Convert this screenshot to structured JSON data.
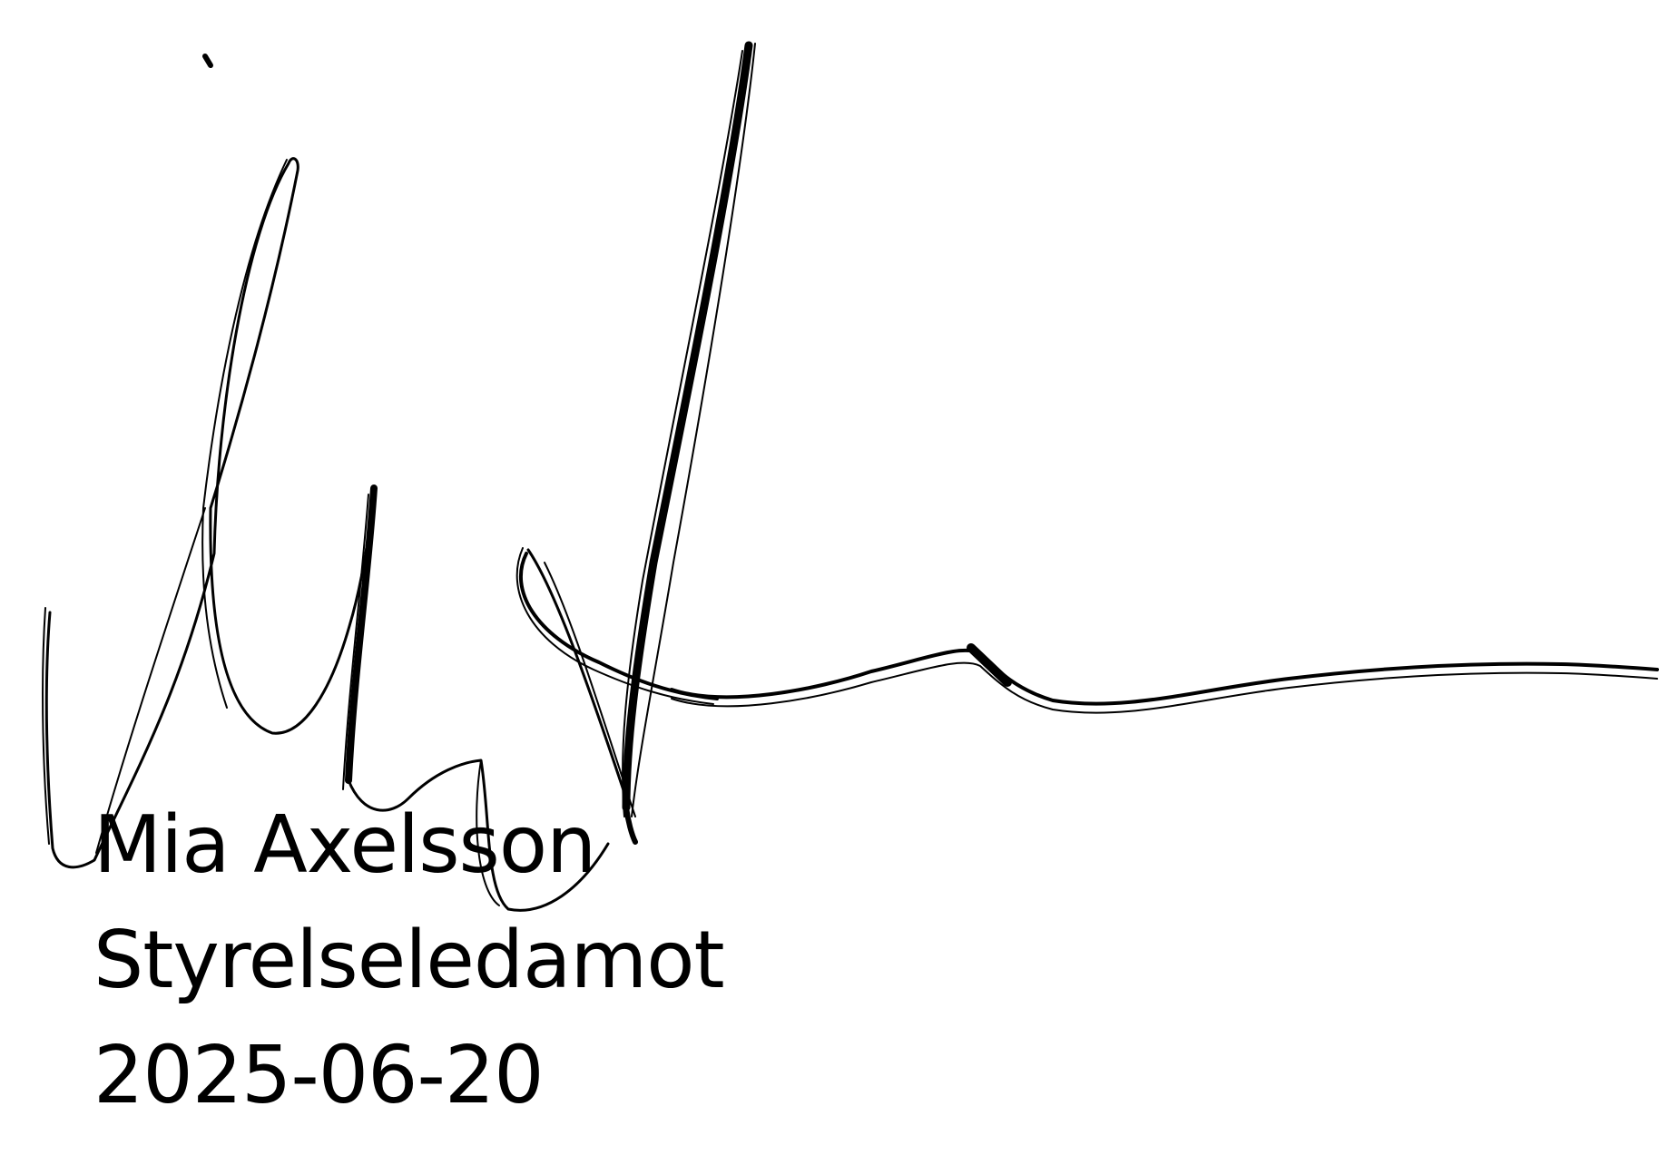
{
  "signatory": {
    "name": "Mia Axelsson",
    "title": "Styrelseledamot",
    "date": "2025-06-20"
  },
  "colors": {
    "ink": "#000000",
    "paper": "#ffffff"
  }
}
